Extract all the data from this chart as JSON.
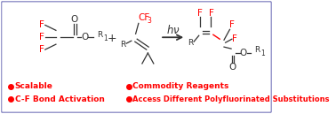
{
  "bg_color": "#ffffff",
  "border_color": "#9999cc",
  "red": "#ff0000",
  "black": "#333333",
  "bullet_left": [
    "Scalable",
    "C-F Bond Activation"
  ],
  "bullet_right": [
    "Commodity Reagents",
    "Access Different Polyfluorinated Substitutions"
  ],
  "figsize": [
    3.78,
    1.29
  ],
  "dpi": 100
}
